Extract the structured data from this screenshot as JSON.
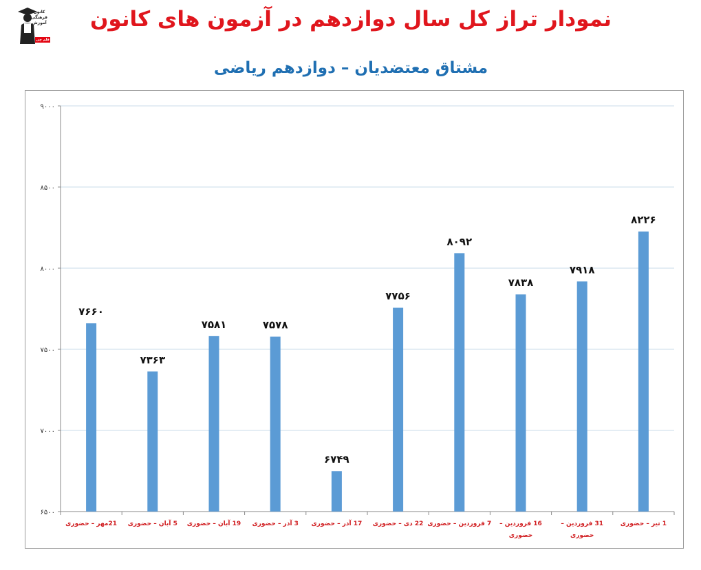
{
  "header": {
    "title": "نمودار تراز کل سال دوازدهم در آزمون های کانون",
    "subtitle": "مشتاق معتضدیان – دوازدهم ریاضی"
  },
  "logo": {
    "icon": "graduate-figure-icon",
    "text_lines": [
      "کانون",
      "فرهنگی",
      "آموزش"
    ],
    "badge": "قلم چی"
  },
  "colors": {
    "bar": "#5b9bd5",
    "title": "#e0161d",
    "subtitle": "#1f6fb2",
    "category_label": "#d01c1f",
    "grid": "#c9dbe9"
  },
  "chart_data": {
    "type": "bar",
    "title": "نمودار تراز کل سال دوازدهم در آزمون های کانون",
    "subtitle": "مشتاق معتضدیان – دوازدهم ریاضی",
    "categories": [
      [
        "21مهر – حضوری"
      ],
      [
        "5 آبان – حضوری"
      ],
      [
        "19 آبان – حضوری"
      ],
      [
        "3 آذر – حضوری"
      ],
      [
        "17 آذر – حضوری"
      ],
      [
        "22 دی – حضوری"
      ],
      [
        "7 فروردین – حضوری"
      ],
      [
        "16 فروردین –",
        "حضوری"
      ],
      [
        "31 فروردین –",
        "حضوری"
      ],
      [
        "1 تیر – حضوری"
      ]
    ],
    "values": [
      7660,
      7363,
      7581,
      7578,
      6749,
      7756,
      8092,
      7838,
      7918,
      8226
    ],
    "value_labels": [
      "۷۶۶۰",
      "۷۳۶۳",
      "۷۵۸۱",
      "۷۵۷۸",
      "۶۷۴۹",
      "۷۷۵۶",
      "۸۰۹۲",
      "۷۸۳۸",
      "۷۹۱۸",
      "۸۲۲۶"
    ],
    "ylim": [
      6500,
      9000
    ],
    "yticks": [
      6500,
      7000,
      7500,
      8000,
      8500,
      9000
    ],
    "ytick_labels": [
      "۶۵۰۰",
      "۷۰۰۰",
      "۷۵۰۰",
      "۸۰۰۰",
      "۸۵۰۰",
      "۹۰۰۰"
    ],
    "grid": true,
    "legend": "none"
  }
}
